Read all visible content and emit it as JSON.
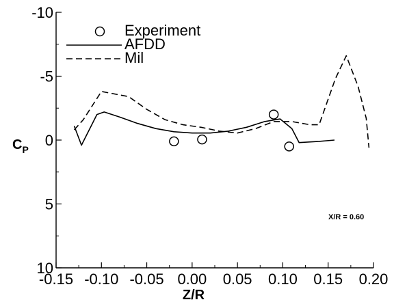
{
  "chart_data": {
    "type": "line",
    "xlabel": "Z/R",
    "ylabel_main": "C",
    "ylabel_sub": "P",
    "xlim": [
      -0.15,
      0.2
    ],
    "ylim": [
      -10,
      10
    ],
    "y_inverted": true,
    "x_ticks": [
      "-0.15",
      "-0.10",
      "-0.05",
      "0.00",
      "0.05",
      "0.10",
      "0.15",
      "0.20"
    ],
    "x_tick_values": [
      -0.15,
      -0.1,
      -0.05,
      0.0,
      0.05,
      0.1,
      0.15,
      0.2
    ],
    "y_ticks": [
      "-10",
      "-5",
      "0",
      "5",
      "10"
    ],
    "y_tick_values": [
      -10,
      -5,
      0,
      5,
      10
    ],
    "grid": false,
    "legend_position": "top-left",
    "annotation": "X/R = 0.60",
    "series": [
      {
        "name": "Experiment",
        "style": "circle-marker",
        "x": [
          -0.02,
          0.011,
          0.09,
          0.107
        ],
        "y": [
          0.1,
          -0.05,
          -2.0,
          0.5
        ]
      },
      {
        "name": "AFDD",
        "style": "solid",
        "x": [
          -0.13,
          -0.122,
          -0.105,
          -0.097,
          -0.08,
          -0.06,
          -0.04,
          -0.02,
          0.0,
          0.02,
          0.04,
          0.06,
          0.08,
          0.097,
          0.11,
          0.118,
          0.14,
          0.157
        ],
        "y": [
          -1.1,
          0.4,
          -2.0,
          -2.2,
          -1.8,
          -1.3,
          -0.9,
          -0.65,
          -0.55,
          -0.55,
          -0.7,
          -1.0,
          -1.45,
          -1.65,
          -0.9,
          0.2,
          0.1,
          0.0
        ]
      },
      {
        "name": "Mil",
        "style": "dashed",
        "x": [
          -0.13,
          -0.12,
          -0.1,
          -0.07,
          -0.05,
          -0.03,
          -0.01,
          0.01,
          0.03,
          0.05,
          0.07,
          0.09,
          0.11,
          0.13,
          0.14,
          0.158,
          0.17,
          0.183,
          0.192,
          0.195
        ],
        "y": [
          -0.8,
          -1.6,
          -3.8,
          -3.4,
          -2.4,
          -1.6,
          -1.2,
          -1.0,
          -0.7,
          -0.55,
          -0.9,
          -1.45,
          -1.45,
          -1.2,
          -1.2,
          -4.8,
          -6.6,
          -4.2,
          -1.7,
          0.6
        ]
      }
    ]
  }
}
